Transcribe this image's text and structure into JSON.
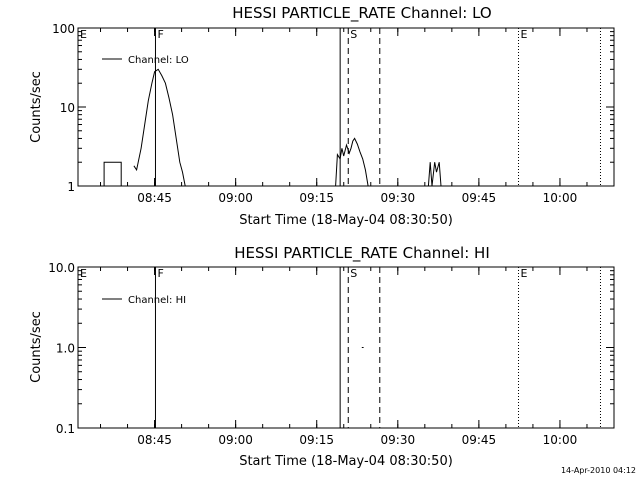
{
  "timestamp": "14-Apr-2010 04:12",
  "chart_data": [
    {
      "type": "line",
      "title": "HESSI PARTICLE_RATE Channel: LO",
      "xlabel": "Start Time (18-May-04 08:30:50)",
      "ylabel": "Counts/sec",
      "yscale": "log",
      "ylim": [
        1,
        100
      ],
      "xlim": [
        "08:30:50",
        "10:10:00"
      ],
      "xticks": [
        "08:45",
        "09:00",
        "09:15",
        "09:30",
        "09:45",
        "10:00"
      ],
      "yticks": [
        "1",
        "10",
        "100"
      ],
      "legend": {
        "label": "Channel: LO",
        "placement": "top-left"
      },
      "markers": [
        {
          "label": "E",
          "time": "08:30:50",
          "style": "none"
        },
        {
          "label": "F",
          "time": "08:45:10",
          "style": "solid"
        },
        {
          "label": "",
          "time": "09:19:20",
          "style": "solid"
        },
        {
          "label": "S",
          "time": "09:20:50",
          "style": "dashed"
        },
        {
          "label": "",
          "time": "09:26:40",
          "style": "dashed"
        },
        {
          "label": "E",
          "time": "09:52:20",
          "style": "dotted"
        },
        {
          "label": "",
          "time": "10:07:30",
          "style": "dotted"
        }
      ],
      "series": [
        {
          "name": "Channel: LO",
          "segments": [
            [
              [
                "08:35:40",
                1
              ],
              [
                "08:35:40",
                2
              ],
              [
                "08:38:50",
                2
              ],
              [
                "08:38:50",
                1
              ]
            ],
            [
              [
                "08:41:10",
                1.8
              ],
              [
                "08:41:40",
                1.6
              ],
              [
                "08:42:30",
                3
              ],
              [
                "08:43:10",
                6
              ],
              [
                "08:43:50",
                12
              ],
              [
                "08:44:30",
                20
              ],
              [
                "08:45:00",
                28
              ],
              [
                "08:45:40",
                30
              ],
              [
                "08:46:20",
                25
              ],
              [
                "08:47:00",
                20
              ],
              [
                "08:47:40",
                13
              ],
              [
                "08:48:20",
                8
              ],
              [
                "08:49:00",
                4
              ],
              [
                "08:49:40",
                2
              ],
              [
                "08:50:10",
                1.5
              ],
              [
                "08:50:40",
                1
              ]
            ],
            [
              [
                "09:18:30",
                1
              ],
              [
                "09:18:50",
                2.5
              ],
              [
                "09:19:20",
                2.2
              ],
              [
                "09:19:40",
                3
              ],
              [
                "09:20:00",
                2.4
              ],
              [
                "09:20:30",
                3.3
              ],
              [
                "09:21:00",
                2.6
              ],
              [
                "09:21:20",
                3.0
              ],
              [
                "09:21:40",
                3.7
              ],
              [
                "09:22:00",
                4.0
              ],
              [
                "09:22:30",
                3.4
              ],
              [
                "09:23:00",
                2.7
              ],
              [
                "09:23:30",
                2.2
              ],
              [
                "09:24:00",
                1.6
              ],
              [
                "09:24:30",
                1
              ]
            ],
            [
              [
                "09:35:40",
                1
              ],
              [
                "09:36:00",
                2
              ],
              [
                "09:36:20",
                1
              ],
              [
                "09:36:50",
                2
              ],
              [
                "09:37:10",
                1.5
              ],
              [
                "09:37:40",
                2
              ],
              [
                "09:38:00",
                1
              ]
            ]
          ]
        }
      ]
    },
    {
      "type": "line",
      "title": "HESSI PARTICLE_RATE Channel: HI",
      "xlabel": "Start Time (18-May-04 08:30:50)",
      "ylabel": "Counts/sec",
      "yscale": "log",
      "ylim": [
        0.1,
        10
      ],
      "xlim": [
        "08:30:50",
        "10:10:00"
      ],
      "xticks": [
        "08:45",
        "09:00",
        "09:15",
        "09:30",
        "09:45",
        "10:00"
      ],
      "yticks": [
        "0.1",
        "1.0",
        "10.0"
      ],
      "legend": {
        "label": "Channel: HI",
        "placement": "top-left"
      },
      "markers": [
        {
          "label": "E",
          "time": "08:30:50",
          "style": "none"
        },
        {
          "label": "F",
          "time": "08:45:10",
          "style": "solid"
        },
        {
          "label": "",
          "time": "09:19:20",
          "style": "solid"
        },
        {
          "label": "S",
          "time": "09:20:50",
          "style": "dashed"
        },
        {
          "label": "",
          "time": "09:26:40",
          "style": "dashed"
        },
        {
          "label": "E",
          "time": "09:52:20",
          "style": "dotted"
        },
        {
          "label": "",
          "time": "10:07:30",
          "style": "dotted"
        }
      ],
      "series": [
        {
          "name": "Channel: HI",
          "segments": [
            [
              [
                "09:23:20",
                1.0
              ],
              [
                "09:23:40",
                1.0
              ]
            ]
          ]
        }
      ]
    }
  ]
}
